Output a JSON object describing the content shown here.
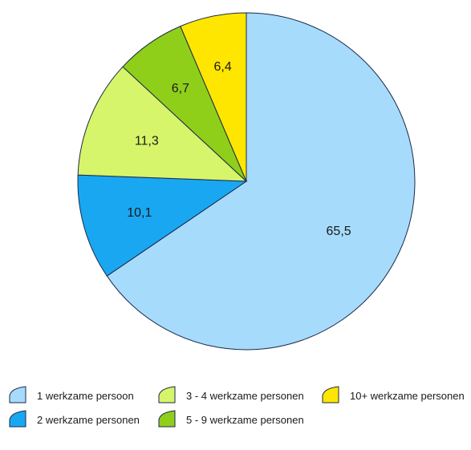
{
  "chart_data": {
    "type": "pie",
    "categories": [
      "1 werkzame persoon",
      "2 werkzame personen",
      "3 - 4 werkzame personen",
      "5 - 9 werkzame personen",
      "10+ werkzame personen"
    ],
    "values": [
      65.5,
      10.1,
      11.3,
      6.7,
      6.4
    ],
    "value_labels": [
      "65,5",
      "10,1",
      "11,3",
      "6,7",
      "6,4"
    ],
    "colors": [
      "#a6dbfb",
      "#1aa7f2",
      "#d6f56a",
      "#8fcf1a",
      "#ffe600"
    ],
    "start_angle": "12 o'clock",
    "direction": "clockwise",
    "legend_position": "bottom",
    "title": ""
  }
}
